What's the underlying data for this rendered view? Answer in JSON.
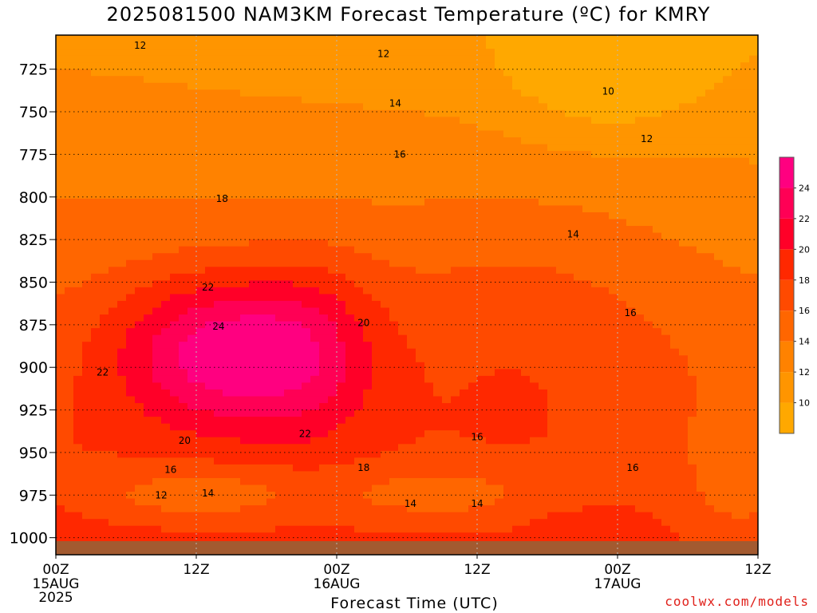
{
  "title": "2025081500 NAM3KM Forecast Temperature (ºC) for KMRY",
  "credit": "coolwx.com/models",
  "chart_data": {
    "type": "heatmap",
    "title": "2025081500 NAM3KM Forecast Temperature (ºC) for KMRY",
    "xlabel": "Forecast Time (UTC)",
    "ylabel": "",
    "x_ticks": [
      {
        "hour": 0,
        "label": "00Z",
        "sub": [
          "15AUG",
          "2025"
        ]
      },
      {
        "hour": 12,
        "label": "12Z",
        "sub": []
      },
      {
        "hour": 24,
        "label": "00Z",
        "sub": [
          "16AUG"
        ]
      },
      {
        "hour": 36,
        "label": "12Z",
        "sub": []
      },
      {
        "hour": 48,
        "label": "00Z",
        "sub": [
          "17AUG"
        ]
      },
      {
        "hour": 60,
        "label": "12Z",
        "sub": []
      }
    ],
    "xlim_hours": [
      0,
      60
    ],
    "y_ticks": [
      725,
      750,
      775,
      800,
      825,
      850,
      875,
      900,
      925,
      950,
      975,
      1000
    ],
    "ylim_hPa": [
      705,
      1010
    ],
    "grid": true,
    "colorbar": {
      "ticks": [
        10,
        12,
        14,
        16,
        18,
        20,
        22,
        24
      ],
      "levels": [
        {
          "min": 8,
          "max": 10,
          "color": "#ffa800"
        },
        {
          "min": 10,
          "max": 12,
          "color": "#ff9500"
        },
        {
          "min": 12,
          "max": 14,
          "color": "#ff8200"
        },
        {
          "min": 14,
          "max": 16,
          "color": "#ff6600"
        },
        {
          "min": 16,
          "max": 18,
          "color": "#ff4a00"
        },
        {
          "min": 18,
          "max": 20,
          "color": "#ff2800"
        },
        {
          "min": 20,
          "max": 22,
          "color": "#ff0028"
        },
        {
          "min": 22,
          "max": 24,
          "color": "#ff0055"
        },
        {
          "min": 24,
          "max": 26,
          "color": "#ff0080"
        }
      ]
    },
    "contour_labels": [
      {
        "value": "12",
        "hour": 7.2,
        "p": 711
      },
      {
        "value": "12",
        "hour": 28.0,
        "p": 716
      },
      {
        "value": "10",
        "hour": 47.2,
        "p": 738
      },
      {
        "value": "14",
        "hour": 29.0,
        "p": 745
      },
      {
        "value": "12",
        "hour": 50.5,
        "p": 766
      },
      {
        "value": "16",
        "hour": 29.4,
        "p": 775
      },
      {
        "value": "18",
        "hour": 14.2,
        "p": 801
      },
      {
        "value": "14",
        "hour": 44.2,
        "p": 822
      },
      {
        "value": "22",
        "hour": 13.0,
        "p": 853
      },
      {
        "value": "16",
        "hour": 49.1,
        "p": 868
      },
      {
        "value": "20",
        "hour": 26.3,
        "p": 874
      },
      {
        "value": "24",
        "hour": 13.9,
        "p": 876
      },
      {
        "value": "22",
        "hour": 4.0,
        "p": 903
      },
      {
        "value": "22",
        "hour": 21.3,
        "p": 939
      },
      {
        "value": "20",
        "hour": 11.0,
        "p": 943
      },
      {
        "value": "16",
        "hour": 36.0,
        "p": 941
      },
      {
        "value": "18",
        "hour": 26.3,
        "p": 959
      },
      {
        "value": "16",
        "hour": 9.8,
        "p": 960
      },
      {
        "value": "16",
        "hour": 49.3,
        "p": 959
      },
      {
        "value": "12",
        "hour": 9.0,
        "p": 975
      },
      {
        "value": "14",
        "hour": 13.0,
        "p": 974
      },
      {
        "value": "14",
        "hour": 30.3,
        "p": 980
      },
      {
        "value": "14",
        "hour": 36.0,
        "p": 980
      }
    ]
  }
}
